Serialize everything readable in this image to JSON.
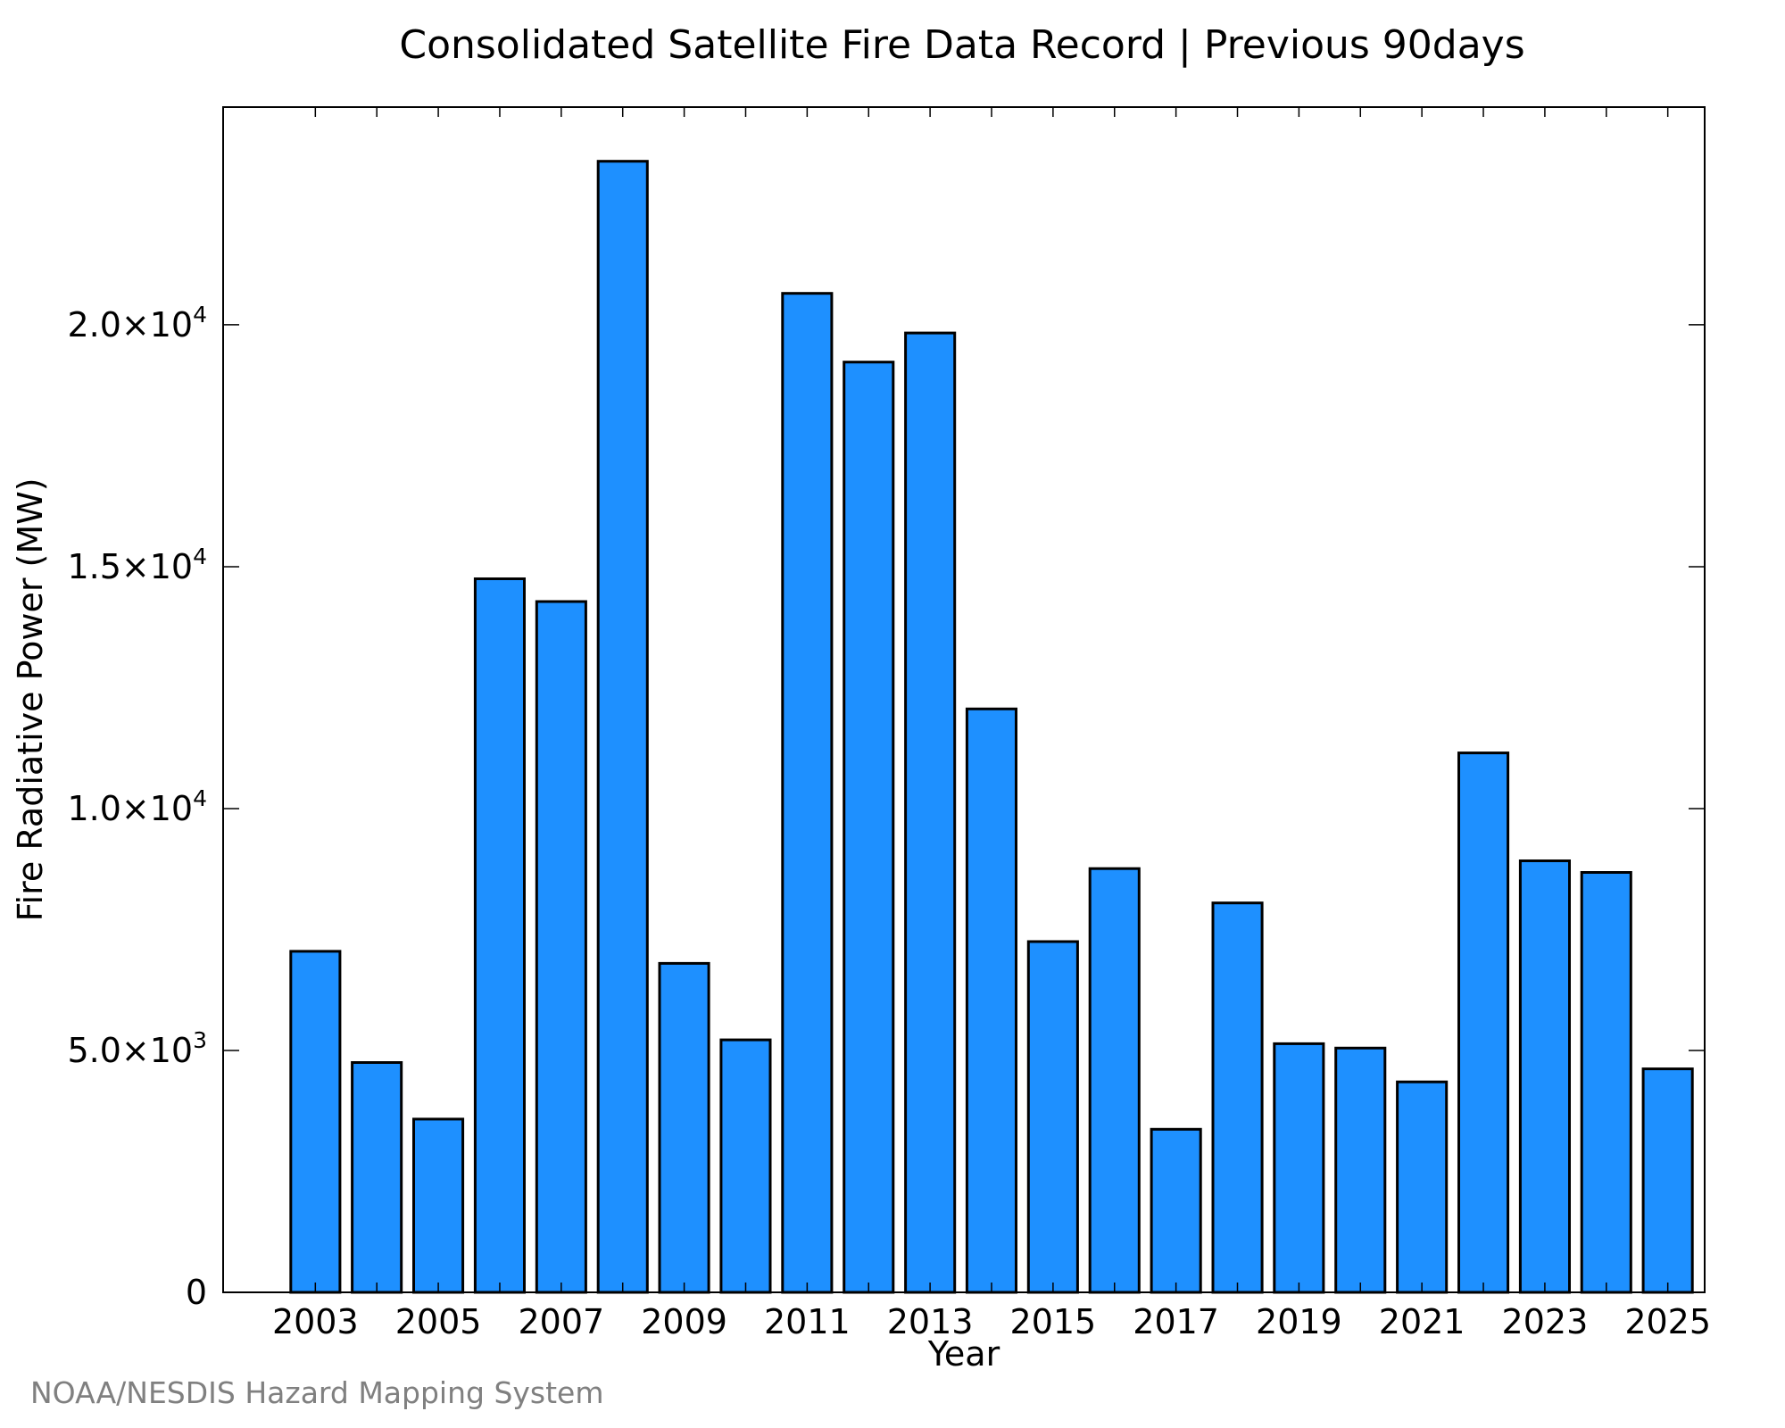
{
  "chart_data": {
    "type": "bar",
    "title": "Consolidated Satellite Fire Data Record | Previous 90days",
    "xlabel": "Year",
    "ylabel": "Fire Radiative Power (MW)",
    "categories": [
      "2003",
      "2004",
      "2005",
      "2006",
      "2007",
      "2008",
      "2009",
      "2010",
      "2011",
      "2012",
      "2013",
      "2014",
      "2015",
      "2016",
      "2017",
      "2018",
      "2019",
      "2020",
      "2021",
      "2022",
      "2023",
      "2024",
      "2025"
    ],
    "values": [
      7050,
      4750,
      3580,
      14750,
      14280,
      23380,
      6800,
      5220,
      20650,
      19230,
      19830,
      12060,
      7250,
      8760,
      3370,
      8050,
      5140,
      5050,
      4350,
      11150,
      8920,
      8680,
      4620
    ],
    "x_tick_labels": [
      "2003",
      "2005",
      "2007",
      "2009",
      "2011",
      "2013",
      "2015",
      "2017",
      "2019",
      "2021",
      "2023",
      "2025"
    ],
    "y_ticks": [
      {
        "value": 0,
        "mant": "0",
        "exp": ""
      },
      {
        "value": 5000,
        "mant": "5.0×10",
        "exp": "3"
      },
      {
        "value": 10000,
        "mant": "1.0×10",
        "exp": "4"
      },
      {
        "value": 15000,
        "mant": "1.5×10",
        "exp": "4"
      },
      {
        "value": 20000,
        "mant": "2.0×10",
        "exp": "4"
      }
    ],
    "ylim": [
      0,
      24500
    ],
    "xlim": [
      2001.5,
      2025.6
    ],
    "bar_color": "#1e90ff",
    "grid": false,
    "legend": "none"
  },
  "credit": "NOAA/NESDIS Hazard Mapping System"
}
